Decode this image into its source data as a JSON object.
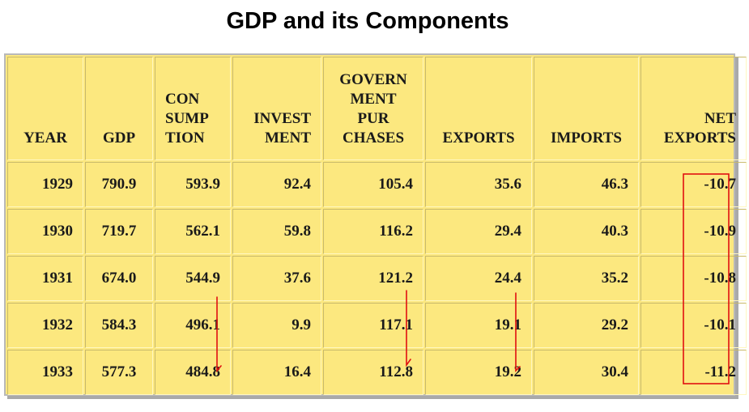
{
  "title": "GDP and its Components",
  "headers": {
    "year": "YEAR",
    "gdp": "GDP",
    "consumption": [
      "CON",
      "SUMP",
      "TION"
    ],
    "investment": [
      "INVEST",
      "MENT"
    ],
    "government": [
      "GOVERN",
      "MENT",
      "PUR",
      "CHASES"
    ],
    "exports": "EXPORTS",
    "imports": "IMPORTS",
    "net_exports": [
      "NET",
      "EXPORTS"
    ]
  },
  "rows": [
    {
      "year": "1929",
      "gdp": "790.9",
      "consumption": "593.9",
      "investment": "92.4",
      "government": "105.4",
      "exports": "35.6",
      "imports": "46.3",
      "net_exports": "-10.7"
    },
    {
      "year": "1930",
      "gdp": "719.7",
      "consumption": "562.1",
      "investment": "59.8",
      "government": "116.2",
      "exports": "29.4",
      "imports": "40.3",
      "net_exports": "-10.9"
    },
    {
      "year": "1931",
      "gdp": "674.0",
      "consumption": "544.9",
      "investment": "37.6",
      "government": "121.2",
      "exports": "24.4",
      "imports": "35.2",
      "net_exports": "-10.8"
    },
    {
      "year": "1932",
      "gdp": "584.3",
      "consumption": "496.1",
      "investment": "9.9",
      "government": "117.1",
      "exports": "19.1",
      "imports": "29.2",
      "net_exports": "-10.1"
    },
    {
      "year": "1933",
      "gdp": "577.3",
      "consumption": "484.8",
      "investment": "16.4",
      "government": "112.8",
      "exports": "19.2",
      "imports": "30.4",
      "net_exports": "-11.2"
    }
  ],
  "annotation_color": "#e01010"
}
